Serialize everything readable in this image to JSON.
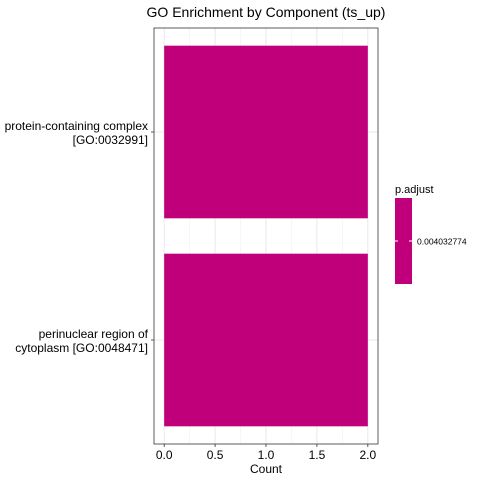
{
  "chart_data": {
    "type": "bar",
    "orientation": "horizontal",
    "title": "GO Enrichment by Component (ts_up)",
    "xlabel": "Count",
    "ylabel": "",
    "categories": [
      {
        "line1": "protein-containing complex",
        "line2": "[GO:0032991]"
      },
      {
        "line1": "perinuclear region of",
        "line2": "cytoplasm [GO:0048471]"
      }
    ],
    "values": [
      2,
      2
    ],
    "xlim": [
      -0.1,
      2.1
    ],
    "xticks": [
      0.0,
      0.5,
      1.0,
      1.5,
      2.0
    ],
    "xtick_labels": [
      "0.0",
      "0.5",
      "1.0",
      "1.5",
      "2.0"
    ],
    "grid": true,
    "bar_color": "#C0007A",
    "legend": {
      "title": "p.adjust",
      "placement": "right",
      "color": "#C0007A",
      "label": "0.004032774"
    }
  }
}
